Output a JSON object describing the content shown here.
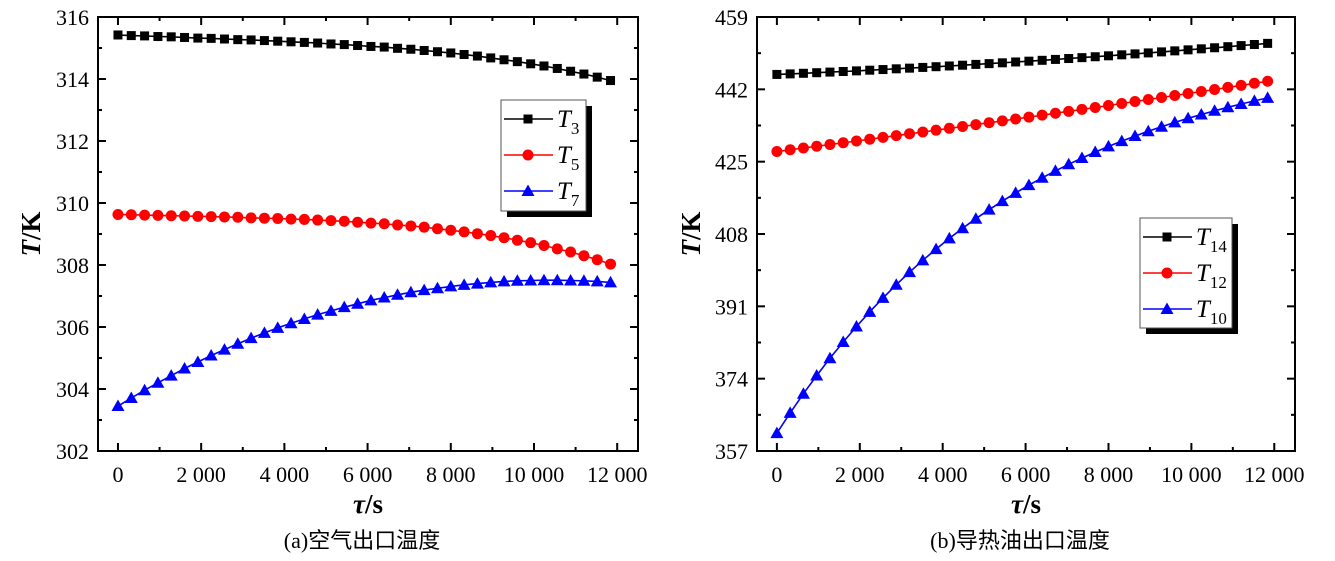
{
  "figure": {
    "panels": 2
  },
  "chart_data": [
    {
      "type": "line",
      "panel_id": "a",
      "title": "(a)空气出口温度",
      "xlabel_symbol": "τ",
      "xlabel_unit": "/s",
      "ylabel_symbol": "T",
      "ylabel_unit": "/K",
      "xlim": [
        -480,
        12500
      ],
      "ylim": [
        302,
        316
      ],
      "xticks": [
        0,
        2000,
        4000,
        6000,
        8000,
        10000,
        12000
      ],
      "xtick_labels": [
        "0",
        "2 000",
        "4 000",
        "6 000",
        "8 000",
        "10 000",
        "12 000"
      ],
      "yticks": [
        302,
        304,
        306,
        308,
        310,
        312,
        314,
        316
      ],
      "ytick_labels": [
        "302",
        "304",
        "306",
        "308",
        "310",
        "312",
        "314",
        "316"
      ],
      "grid": false,
      "legend_position": "center-right",
      "x": [
        0,
        320,
        640,
        960,
        1280,
        1600,
        1920,
        2240,
        2560,
        2880,
        3200,
        3520,
        3840,
        4160,
        4480,
        4800,
        5120,
        5440,
        5760,
        6080,
        6400,
        6720,
        7040,
        7360,
        7680,
        8000,
        8320,
        8640,
        8960,
        9280,
        9600,
        9920,
        10240,
        10560,
        10880,
        11200,
        11520,
        11840
      ],
      "series": [
        {
          "name": "T3",
          "symbol": "T",
          "subscript": "3",
          "color": "#000000",
          "marker": "square",
          "values": [
            315.42,
            315.4,
            315.39,
            315.37,
            315.36,
            315.34,
            315.32,
            315.31,
            315.29,
            315.27,
            315.26,
            315.24,
            315.22,
            315.2,
            315.18,
            315.16,
            315.13,
            315.11,
            315.08,
            315.05,
            315.03,
            314.99,
            314.96,
            314.92,
            314.88,
            314.84,
            314.79,
            314.74,
            314.68,
            314.62,
            314.56,
            314.49,
            314.42,
            314.34,
            314.25,
            314.16,
            314.06,
            313.95
          ]
        },
        {
          "name": "T5",
          "symbol": "T",
          "subscript": "5",
          "color": "#ff0000",
          "marker": "circle",
          "values": [
            309.63,
            309.62,
            309.61,
            309.6,
            309.59,
            309.58,
            309.57,
            309.56,
            309.55,
            309.54,
            309.52,
            309.51,
            309.5,
            309.48,
            309.47,
            309.45,
            309.43,
            309.41,
            309.38,
            309.35,
            309.33,
            309.29,
            309.26,
            309.22,
            309.17,
            309.12,
            309.07,
            309.01,
            308.95,
            308.88,
            308.8,
            308.72,
            308.63,
            308.52,
            308.42,
            308.3,
            308.17,
            308.03
          ]
        },
        {
          "name": "T7",
          "symbol": "T",
          "subscript": "7",
          "color": "#0000ff",
          "marker": "triangle",
          "values": [
            303.45,
            303.71,
            303.96,
            304.2,
            304.43,
            304.66,
            304.87,
            305.08,
            305.27,
            305.46,
            305.64,
            305.81,
            305.97,
            306.12,
            306.26,
            306.4,
            306.52,
            306.64,
            306.75,
            306.86,
            306.95,
            307.04,
            307.12,
            307.19,
            307.25,
            307.31,
            307.36,
            307.4,
            307.44,
            307.47,
            307.49,
            307.5,
            307.51,
            307.51,
            307.5,
            307.49,
            307.47,
            307.44
          ]
        }
      ]
    },
    {
      "type": "line",
      "panel_id": "b",
      "title": "(b)导热油出口温度",
      "xlabel_symbol": "τ",
      "xlabel_unit": "/s",
      "ylabel_symbol": "T",
      "ylabel_unit": "/K",
      "xlim": [
        -480,
        12500
      ],
      "ylim": [
        357,
        459
      ],
      "xticks": [
        0,
        2000,
        4000,
        6000,
        8000,
        10000,
        12000
      ],
      "xtick_labels": [
        "0",
        "2 000",
        "4 000",
        "6 000",
        "8 000",
        "10 000",
        "12 000"
      ],
      "yticks": [
        357,
        374,
        391,
        408,
        425,
        442,
        459
      ],
      "ytick_labels": [
        "357",
        "374",
        "391",
        "408",
        "425",
        "442",
        "459"
      ],
      "grid": false,
      "legend_position": "center-right",
      "x": [
        0,
        320,
        640,
        960,
        1280,
        1600,
        1920,
        2240,
        2560,
        2880,
        3200,
        3520,
        3840,
        4160,
        4480,
        4800,
        5120,
        5440,
        5760,
        6080,
        6400,
        6720,
        7040,
        7360,
        7680,
        8000,
        8320,
        8640,
        8960,
        9280,
        9600,
        9920,
        10240,
        10560,
        10880,
        11200,
        11520,
        11840
      ],
      "series": [
        {
          "name": "T14",
          "symbol": "T",
          "subscript": "14",
          "color": "#000000",
          "marker": "square",
          "values": [
            445.5,
            445.63,
            445.77,
            445.91,
            446.05,
            446.19,
            446.34,
            446.5,
            446.65,
            446.82,
            446.98,
            447.15,
            447.32,
            447.49,
            447.67,
            447.86,
            448.04,
            448.23,
            448.43,
            448.62,
            448.82,
            449.03,
            449.24,
            449.45,
            449.66,
            449.88,
            450.11,
            450.33,
            450.56,
            450.8,
            451.04,
            451.28,
            451.52,
            451.77,
            452.02,
            452.28,
            452.54,
            452.8
          ]
        },
        {
          "name": "T12",
          "symbol": "T",
          "subscript": "12",
          "color": "#ff0000",
          "marker": "circle",
          "values": [
            427.4,
            427.8,
            428.21,
            428.62,
            429.03,
            429.44,
            429.86,
            430.28,
            430.7,
            431.12,
            431.55,
            431.97,
            432.4,
            432.84,
            433.27,
            433.71,
            434.15,
            434.59,
            435.03,
            435.48,
            435.93,
            436.38,
            436.83,
            437.29,
            437.74,
            438.2,
            438.67,
            439.13,
            439.6,
            440.07,
            440.54,
            441.01,
            441.49,
            441.97,
            442.45,
            442.93,
            443.42,
            443.9
          ]
        },
        {
          "name": "T10",
          "symbol": "T",
          "subscript": "10",
          "color": "#0000ff",
          "marker": "triangle",
          "values": [
            361.2,
            365.95,
            370.46,
            374.73,
            378.79,
            382.62,
            386.26,
            389.71,
            392.98,
            396.08,
            399.03,
            401.81,
            404.45,
            406.96,
            409.34,
            411.59,
            413.72,
            415.74,
            417.66,
            419.49,
            421.21,
            422.84,
            424.39,
            425.86,
            427.26,
            428.58,
            429.83,
            431.02,
            432.15,
            433.21,
            434.23,
            435.19,
            436.09,
            436.96,
            437.78,
            438.55,
            439.29,
            439.98
          ]
        }
      ]
    }
  ]
}
